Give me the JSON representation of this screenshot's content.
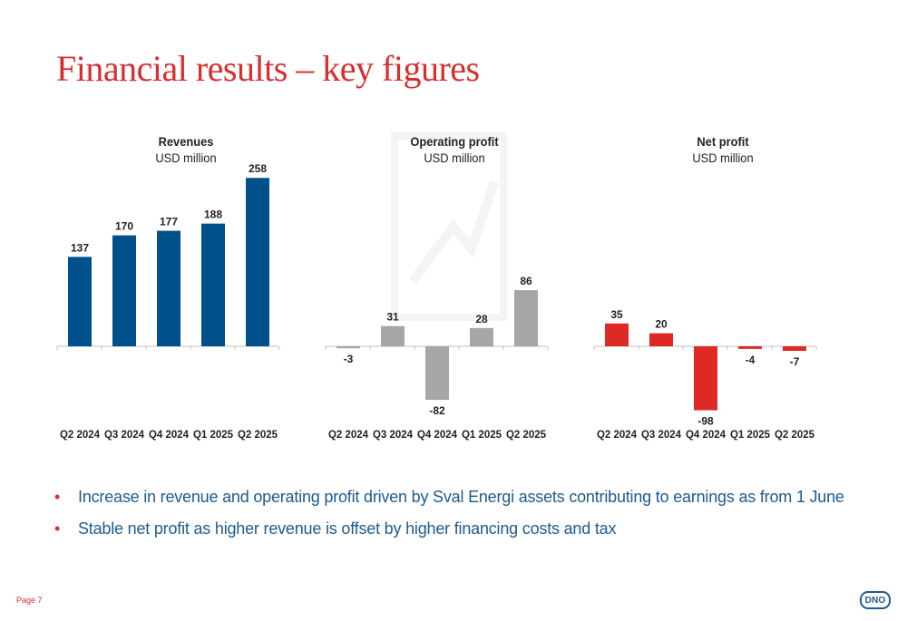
{
  "slide": {
    "title": "Financial results – key figures",
    "page_label": "Page 7",
    "logo_text": "DNO",
    "colors": {
      "title": "#d72f2f",
      "bullet_text": "#1e5b8e",
      "bullet_marker": "#d72f2f"
    }
  },
  "bullets": [
    "Increase in revenue and operating profit driven by Sval Energi assets contributing to earnings as from 1 June",
    "Stable net profit as higher revenue is offset by higher financing costs and tax"
  ],
  "chart_data": [
    {
      "type": "bar",
      "title": "Revenues",
      "subtitle": "USD million",
      "categories": [
        "Q2 2024",
        "Q3 2024",
        "Q4 2024",
        "Q1 2025",
        "Q2 2025"
      ],
      "values": [
        137,
        170,
        177,
        188,
        258
      ],
      "color": "#00508c",
      "legend": false,
      "grid": false
    },
    {
      "type": "bar",
      "title": "Operating profit",
      "subtitle": "USD million",
      "categories": [
        "Q2 2024",
        "Q3 2024",
        "Q4 2024",
        "Q1 2025",
        "Q2 2025"
      ],
      "values": [
        -3,
        31,
        -82,
        28,
        86
      ],
      "color": "#a6a6a6",
      "legend": false,
      "grid": false
    },
    {
      "type": "bar",
      "title": "Net profit",
      "subtitle": "USD million",
      "categories": [
        "Q2 2024",
        "Q3 2024",
        "Q4 2024",
        "Q1 2025",
        "Q2 2025"
      ],
      "values": [
        35,
        20,
        -98,
        -4,
        -7
      ],
      "color": "#dd2a25",
      "legend": false,
      "grid": false
    }
  ]
}
